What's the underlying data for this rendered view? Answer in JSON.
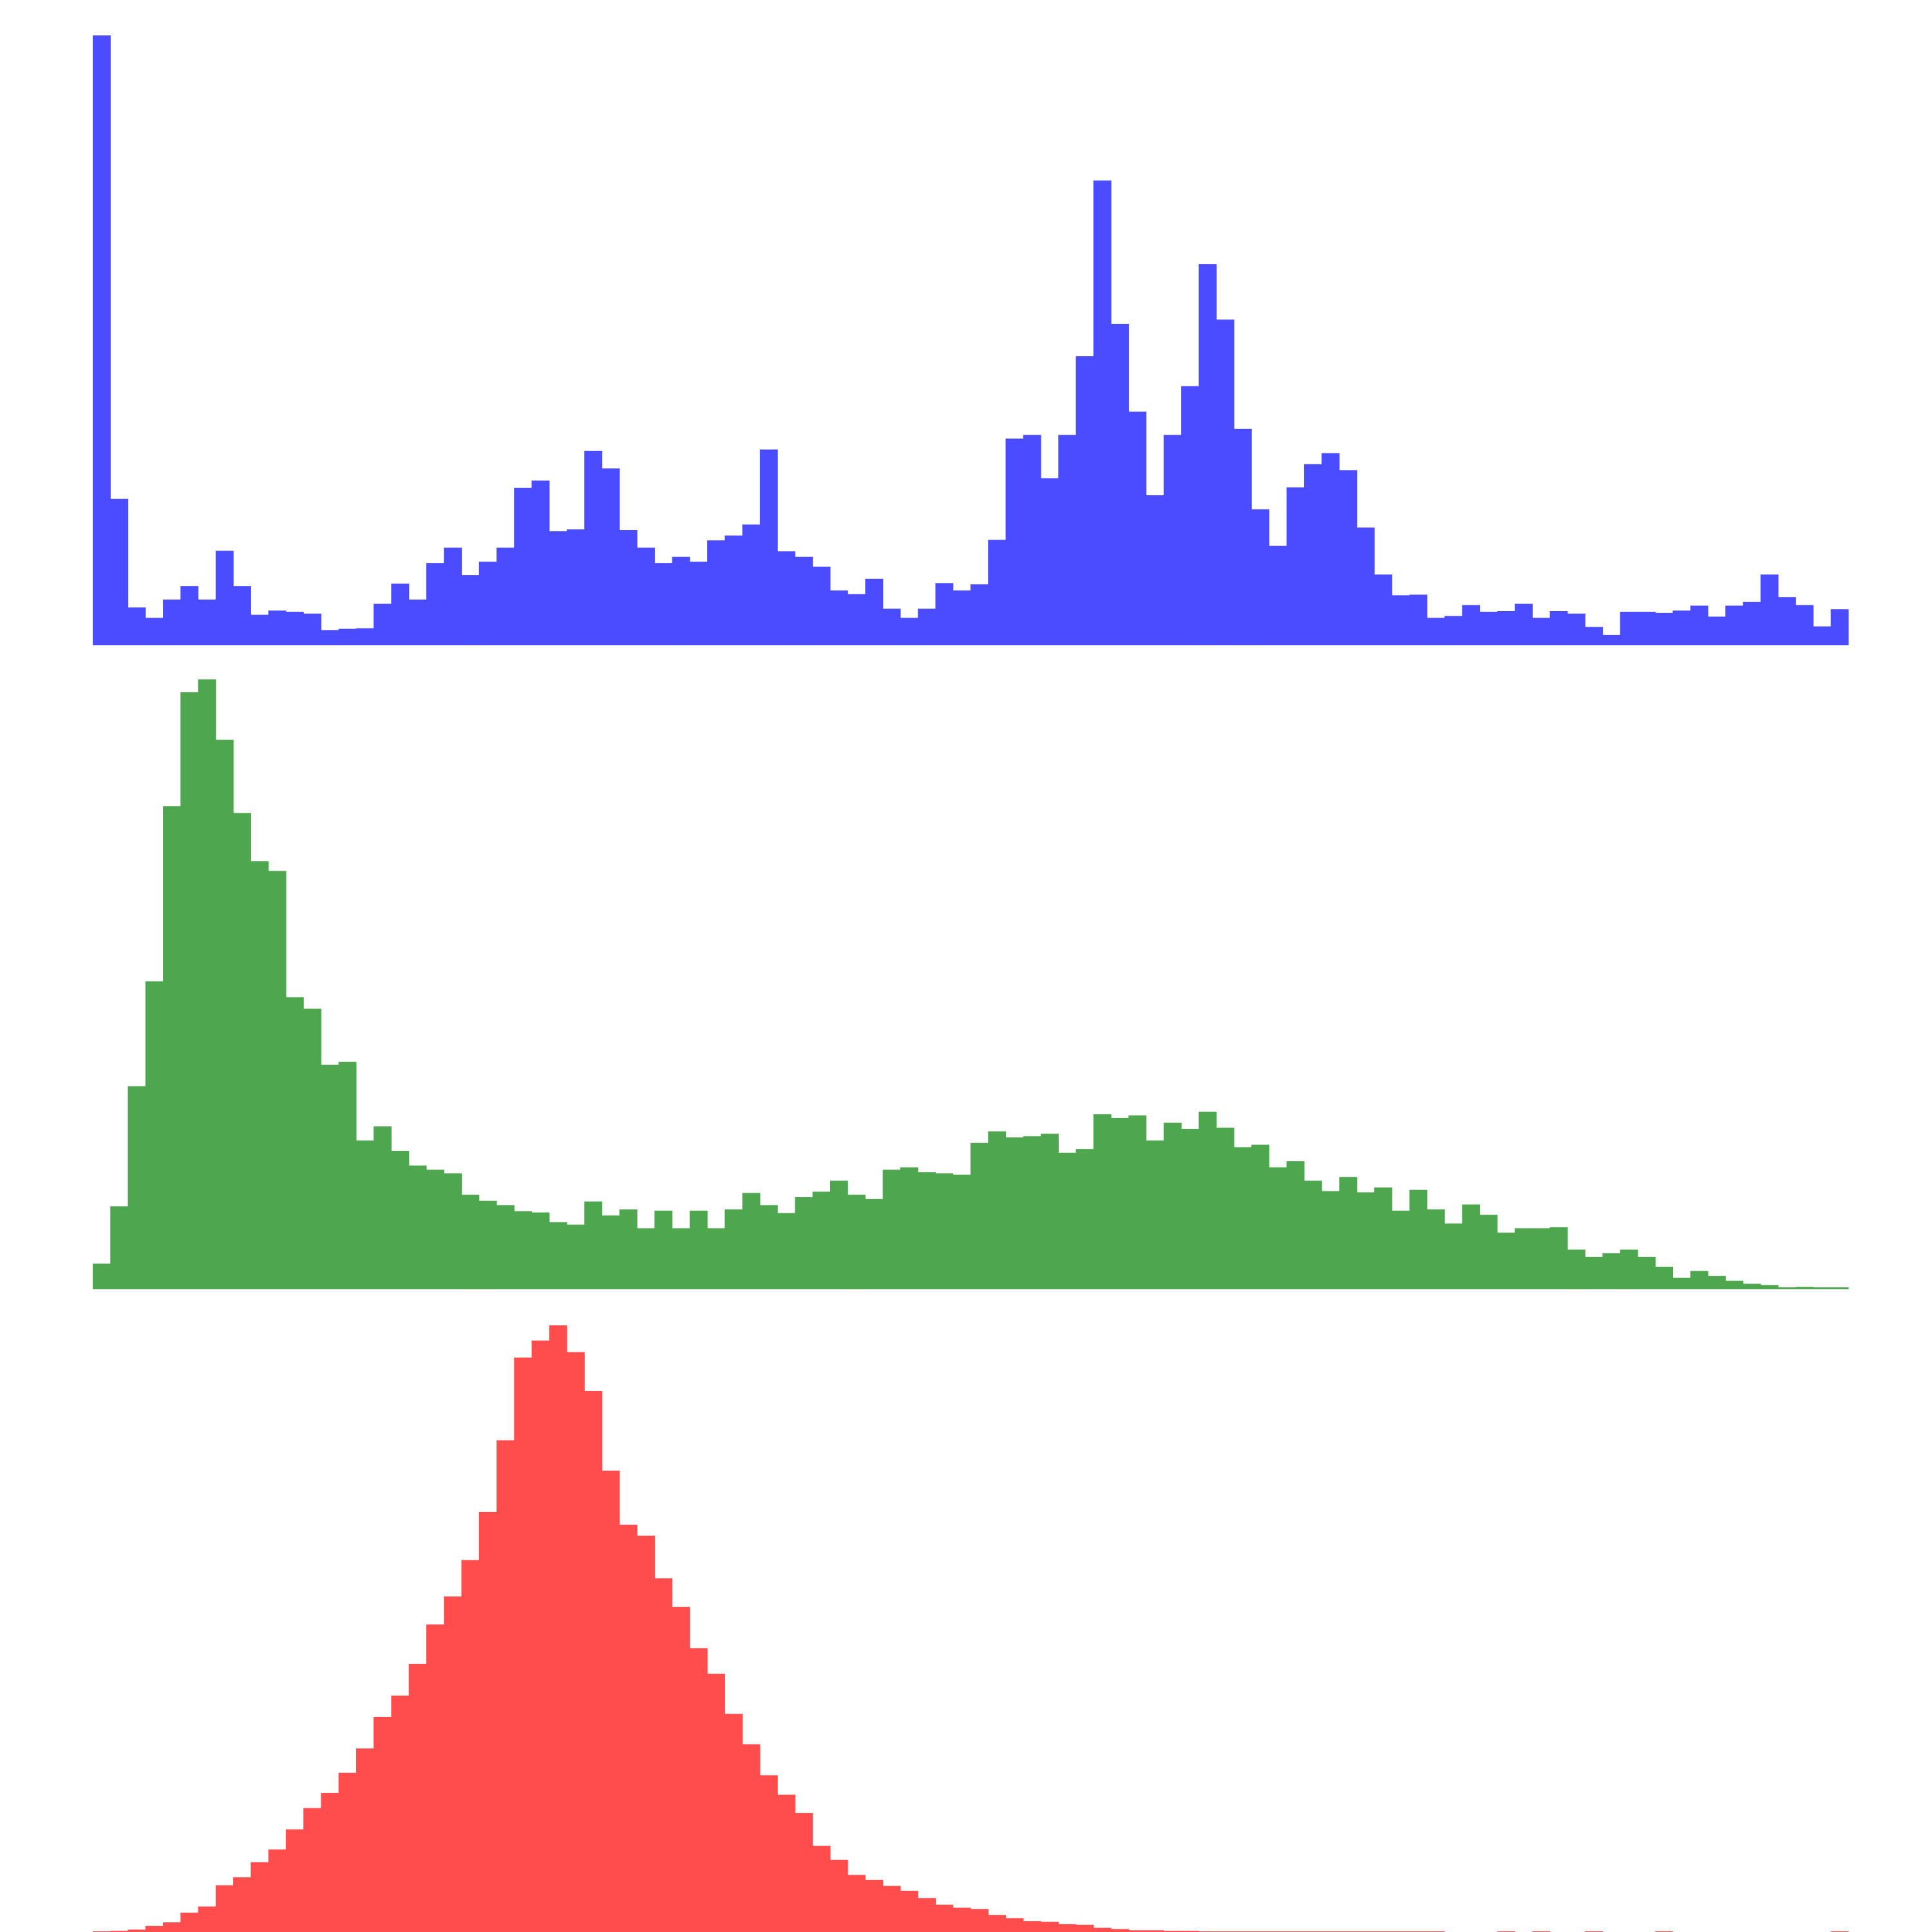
{
  "chart_data": [
    {
      "type": "bar",
      "histogram": "blue-channel",
      "color": "#4b4bff",
      "bins": 100,
      "ylim": [
        0,
        1
      ],
      "values": [
        1.0,
        0.24,
        0.062,
        0.045,
        0.075,
        0.097,
        0.075,
        0.155,
        0.097,
        0.05,
        0.057,
        0.055,
        0.052,
        0.025,
        0.027,
        0.028,
        0.068,
        0.101,
        0.075,
        0.135,
        0.16,
        0.115,
        0.137,
        0.16,
        0.258,
        0.27,
        0.187,
        0.19,
        0.319,
        0.29,
        0.189,
        0.16,
        0.135,
        0.145,
        0.137,
        0.172,
        0.18,
        0.198,
        0.321,
        0.154,
        0.145,
        0.129,
        0.09,
        0.084,
        0.109,
        0.06,
        0.045,
        0.06,
        0.102,
        0.09,
        0.1,
        0.173,
        0.339,
        0.345,
        0.274,
        0.345,
        0.474,
        0.762,
        0.527,
        0.383,
        0.246,
        0.345,
        0.425,
        0.625,
        0.534,
        0.355,
        0.223,
        0.163,
        0.259,
        0.297,
        0.315,
        0.287,
        0.193,
        0.116,
        0.082,
        0.083,
        0.045,
        0.048,
        0.066,
        0.055,
        0.056,
        0.068,
        0.045,
        0.056,
        0.052,
        0.03,
        0.017,
        0.055,
        0.055,
        0.053,
        0.057,
        0.065,
        0.047,
        0.065,
        0.071,
        0.116,
        0.079,
        0.066,
        0.031,
        0.059
      ]
    },
    {
      "type": "bar",
      "histogram": "green-channel",
      "color": "#4ea64e",
      "bins": 100,
      "ylim": [
        0,
        1
      ],
      "values": [
        0.042,
        0.136,
        0.333,
        0.505,
        0.792,
        0.979,
        1.0,
        0.901,
        0.781,
        0.702,
        0.686,
        0.479,
        0.46,
        0.368,
        0.373,
        0.244,
        0.267,
        0.227,
        0.203,
        0.196,
        0.19,
        0.155,
        0.145,
        0.138,
        0.128,
        0.126,
        0.11,
        0.106,
        0.144,
        0.121,
        0.131,
        0.1,
        0.129,
        0.1,
        0.129,
        0.1,
        0.131,
        0.158,
        0.138,
        0.125,
        0.151,
        0.16,
        0.178,
        0.155,
        0.148,
        0.196,
        0.2,
        0.192,
        0.19,
        0.188,
        0.24,
        0.259,
        0.249,
        0.251,
        0.255,
        0.224,
        0.23,
        0.287,
        0.281,
        0.285,
        0.244,
        0.273,
        0.263,
        0.291,
        0.265,
        0.233,
        0.237,
        0.2,
        0.21,
        0.178,
        0.161,
        0.184,
        0.159,
        0.167,
        0.129,
        0.163,
        0.131,
        0.108,
        0.139,
        0.122,
        0.093,
        0.1,
        0.1,
        0.102,
        0.065,
        0.053,
        0.059,
        0.065,
        0.053,
        0.037,
        0.019,
        0.03,
        0.022,
        0.014,
        0.009,
        0.007,
        0.002,
        0.004,
        0.002,
        0.002
      ]
    },
    {
      "type": "bar",
      "histogram": "red-channel",
      "color": "#ff4d4d",
      "bins": 100,
      "ylim": [
        0,
        1
      ],
      "values": [
        0.002,
        0.004,
        0.006,
        0.012,
        0.018,
        0.034,
        0.044,
        0.079,
        0.092,
        0.117,
        0.138,
        0.171,
        0.206,
        0.231,
        0.264,
        0.304,
        0.356,
        0.391,
        0.443,
        0.508,
        0.554,
        0.614,
        0.693,
        0.811,
        0.947,
        0.975,
        1.0,
        0.956,
        0.892,
        0.761,
        0.672,
        0.654,
        0.584,
        0.537,
        0.469,
        0.427,
        0.361,
        0.311,
        0.26,
        0.228,
        0.198,
        0.144,
        0.121,
        0.096,
        0.088,
        0.078,
        0.07,
        0.058,
        0.047,
        0.042,
        0.04,
        0.03,
        0.025,
        0.02,
        0.019,
        0.015,
        0.014,
        0.009,
        0.007,
        0.005,
        0.005,
        0.004,
        0.004,
        0.003,
        0.003,
        0.002,
        0.002,
        0.002,
        0.002,
        0.002,
        0.002,
        0.001,
        0.001,
        0.001,
        0.001,
        0.002,
        0.001,
        0.0,
        0.0,
        0.0,
        0.001,
        0.0,
        0.001,
        0.0,
        0.0,
        0.001,
        0.0,
        0.0,
        0.0,
        0.001,
        0.0,
        0.0,
        0.0,
        0.0,
        0.0,
        0.0,
        0.0,
        0.0,
        0.0,
        0.001
      ]
    }
  ]
}
